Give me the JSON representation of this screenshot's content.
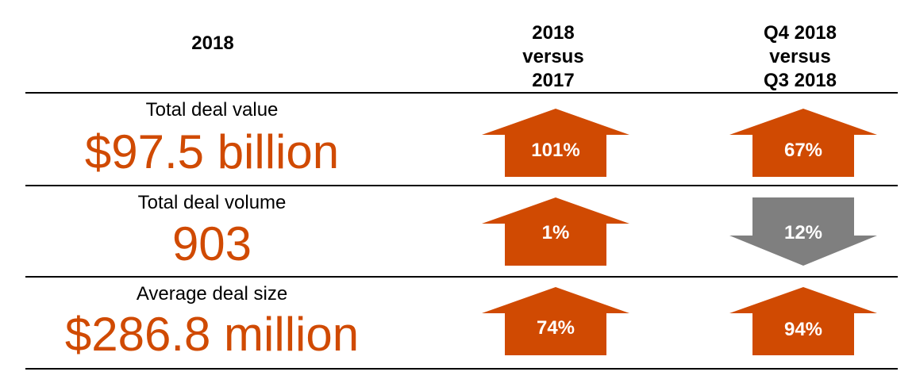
{
  "header": {
    "year": "2018",
    "col1": [
      "2018",
      "versus",
      "2017"
    ],
    "col2": [
      "Q4 2018",
      "versus",
      "Q3 2018"
    ]
  },
  "colors": {
    "up": "#d04a02",
    "down": "#7f7f7f",
    "value_text": "#d04a02"
  },
  "rows": [
    {
      "label": "Total deal value",
      "value": "$97.5 billion",
      "yoy": {
        "direction": "up",
        "change": "101%"
      },
      "qoq": {
        "direction": "up",
        "change": "67%"
      }
    },
    {
      "label": "Total deal volume",
      "value": "903",
      "yoy": {
        "direction": "up",
        "change": "1%"
      },
      "qoq": {
        "direction": "down",
        "change": "12%"
      }
    },
    {
      "label": "Average deal size",
      "value": "$286.8 million",
      "yoy": {
        "direction": "up",
        "change": "74%"
      },
      "qoq": {
        "direction": "up",
        "change": "94%"
      }
    }
  ]
}
